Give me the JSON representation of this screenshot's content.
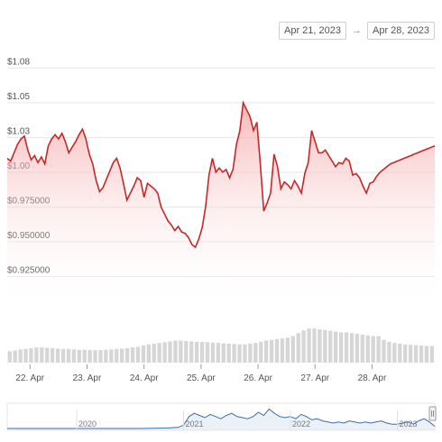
{
  "range_selector": {
    "from": "Apr 21, 2023",
    "arrow": "→",
    "to": "Apr 28, 2023"
  },
  "colors": {
    "line": "#c62828",
    "area_top": "#f5a0a0",
    "volume": "#d6d6d6",
    "navigator_line": "#3d6ea8",
    "grid": "#e6e6e6"
  },
  "chart_data": {
    "type": "area",
    "y_ticks": [
      "$0.925000",
      "$0.950000",
      "$0.975000",
      "$1.00",
      "$1.03",
      "$1.05",
      "$1.08"
    ],
    "y_tick_values": [
      0.925,
      0.95,
      0.975,
      1.0,
      1.025,
      1.05,
      1.075
    ],
    "ylim": [
      0.9,
      1.085
    ],
    "x_ticks": [
      "22. Apr",
      "23. Apr",
      "24. Apr",
      "25. Apr",
      "26. Apr",
      "27. Apr",
      "28. Apr"
    ],
    "x_tick_positions": [
      1,
      2,
      3,
      4,
      5,
      6,
      7
    ],
    "xlim": [
      0.6,
      8.1
    ],
    "grid": true,
    "series": [
      {
        "x": [
          0.6,
          0.66,
          0.72,
          0.78,
          0.84,
          0.9,
          0.96,
          1.02,
          1.08,
          1.14,
          1.2,
          1.26,
          1.32,
          1.38,
          1.44,
          1.5,
          1.56,
          1.62,
          1.68,
          1.74,
          1.8,
          1.86,
          1.92,
          1.98,
          2.04,
          2.1,
          2.16,
          2.22,
          2.28,
          2.34,
          2.4,
          2.46,
          2.52,
          2.58,
          2.64,
          2.7,
          2.76,
          2.82,
          2.88,
          2.94,
          3.0,
          3.06,
          3.12,
          3.18,
          3.24,
          3.3,
          3.36,
          3.42,
          3.48,
          3.54,
          3.6,
          3.66,
          3.72,
          3.78,
          3.84,
          3.9,
          3.96,
          4.02,
          4.08,
          4.14,
          4.2,
          4.26,
          4.32,
          4.38,
          4.44,
          4.5,
          4.56,
          4.62,
          4.68,
          4.74,
          4.8,
          4.86,
          4.92,
          4.98,
          5.04,
          5.1,
          5.16,
          5.22,
          5.28,
          5.34,
          5.4,
          5.46,
          5.52,
          5.58,
          5.64,
          5.7,
          5.76,
          5.82,
          5.88,
          5.94,
          6.0,
          6.06,
          6.12,
          6.18,
          6.24,
          6.3,
          6.36,
          6.42,
          6.48,
          6.54,
          6.6,
          6.66,
          6.72,
          6.78,
          6.84,
          6.9,
          6.96,
          7.02,
          7.08,
          7.14,
          7.2,
          7.26,
          7.32,
          7.38,
          7.44,
          7.5,
          7.56,
          7.62,
          7.68,
          7.74,
          7.8,
          7.86,
          7.92,
          7.98,
          8.04,
          8.1
        ],
        "values": [
          1.01,
          1.008,
          1.014,
          1.02,
          1.024,
          1.026,
          1.016,
          1.009,
          1.012,
          1.007,
          1.011,
          1.006,
          1.019,
          1.024,
          1.027,
          1.024,
          1.028,
          1.022,
          1.014,
          1.018,
          1.022,
          1.027,
          1.031,
          1.024,
          1.013,
          1.006,
          0.994,
          0.986,
          0.989,
          0.995,
          1.001,
          1.007,
          1.01,
          1.003,
          0.992,
          0.98,
          0.985,
          0.99,
          0.996,
          0.994,
          0.982,
          0.992,
          0.99,
          0.988,
          0.985,
          0.975,
          0.97,
          0.965,
          0.962,
          0.958,
          0.961,
          0.957,
          0.956,
          0.953,
          0.948,
          0.946,
          0.952,
          0.96,
          0.975,
          0.998,
          1.01,
          1.0,
          1.003,
          1.0,
          1.002,
          0.996,
          1.002,
          1.02,
          1.03,
          1.05,
          1.045,
          1.04,
          1.03,
          1.036,
          1.006,
          0.972,
          0.978,
          0.985,
          1.013,
          1.004,
          0.988,
          0.993,
          0.991,
          0.988,
          0.994,
          0.99,
          0.985,
          0.999,
          1.007,
          1.03,
          1.022,
          1.014,
          1.014,
          1.016,
          1.012,
          1.008,
          1.004,
          1.007,
          1.006,
          1.01,
          1.008,
          0.998,
          0.999,
          0.996,
          0.99,
          0.985,
          0.992,
          0.993,
          0.997,
          1.0,
          1.002,
          1.004,
          1.006,
          1.007,
          1.008,
          1.009,
          1.01,
          1.011,
          1.012,
          1.013,
          1.014,
          1.015,
          1.016,
          1.017,
          1.018,
          1.019
        ]
      }
    ],
    "volume": {
      "x_range": [
        0.6,
        8.1
      ],
      "values": [
        0.3,
        0.32,
        0.35,
        0.36,
        0.38,
        0.4,
        0.4,
        0.39,
        0.38,
        0.37,
        0.36,
        0.36,
        0.35,
        0.34,
        0.34,
        0.33,
        0.33,
        0.33,
        0.34,
        0.35,
        0.36,
        0.37,
        0.38,
        0.4,
        0.42,
        0.45,
        0.48,
        0.5,
        0.52,
        0.54,
        0.56,
        0.58,
        0.58,
        0.57,
        0.56,
        0.55,
        0.55,
        0.54,
        0.53,
        0.52,
        0.51,
        0.5,
        0.49,
        0.48,
        0.48,
        0.5,
        0.52,
        0.55,
        0.58,
        0.6,
        0.62,
        0.64,
        0.66,
        0.7,
        0.78,
        0.85,
        0.9,
        0.9,
        0.88,
        0.86,
        0.84,
        0.82,
        0.8,
        0.8,
        0.78,
        0.76,
        0.74,
        0.72,
        0.7,
        0.7,
        0.6,
        0.55,
        0.52,
        0.5,
        0.48,
        0.47,
        0.46,
        0.45,
        0.44,
        0.44
      ]
    },
    "navigator": {
      "labels": [
        "2020",
        "2021",
        "2022",
        "2023"
      ],
      "label_positions": [
        2020,
        2021,
        2022,
        2023
      ],
      "xlim": [
        2019.35,
        2023.35
      ],
      "series_x": [
        2019.35,
        2019.6,
        2019.85,
        2020.1,
        2020.35,
        2020.6,
        2020.85,
        2020.95,
        2021.0,
        2021.05,
        2021.1,
        2021.15,
        2021.2,
        2021.25,
        2021.3,
        2021.35,
        2021.4,
        2021.45,
        2021.5,
        2021.55,
        2021.6,
        2021.65,
        2021.7,
        2021.75,
        2021.8,
        2021.85,
        2021.9,
        2021.95,
        2022.0,
        2022.05,
        2022.1,
        2022.15,
        2022.2,
        2022.25,
        2022.3,
        2022.35,
        2022.4,
        2022.45,
        2022.5,
        2022.55,
        2022.6,
        2022.65,
        2022.7,
        2022.75,
        2022.8,
        2022.85,
        2022.9,
        2022.95,
        2023.0,
        2023.05,
        2023.1,
        2023.15,
        2023.2,
        2023.25,
        2023.3,
        2023.35
      ],
      "series_values": [
        0.0,
        0.0,
        0.0,
        0.0,
        0.0,
        0.0,
        0.02,
        0.05,
        0.15,
        0.55,
        0.7,
        0.6,
        0.5,
        0.65,
        0.55,
        0.45,
        0.6,
        0.7,
        0.55,
        0.5,
        0.45,
        0.55,
        0.75,
        0.6,
        0.9,
        0.7,
        0.55,
        0.5,
        0.55,
        0.45,
        0.65,
        0.55,
        0.4,
        0.45,
        0.35,
        0.3,
        0.25,
        0.3,
        0.25,
        0.35,
        0.3,
        0.25,
        0.3,
        0.25,
        0.3,
        0.35,
        0.25,
        0.2,
        0.2,
        0.25,
        0.3,
        0.2,
        0.35,
        0.45,
        0.3,
        0.1
      ]
    }
  }
}
